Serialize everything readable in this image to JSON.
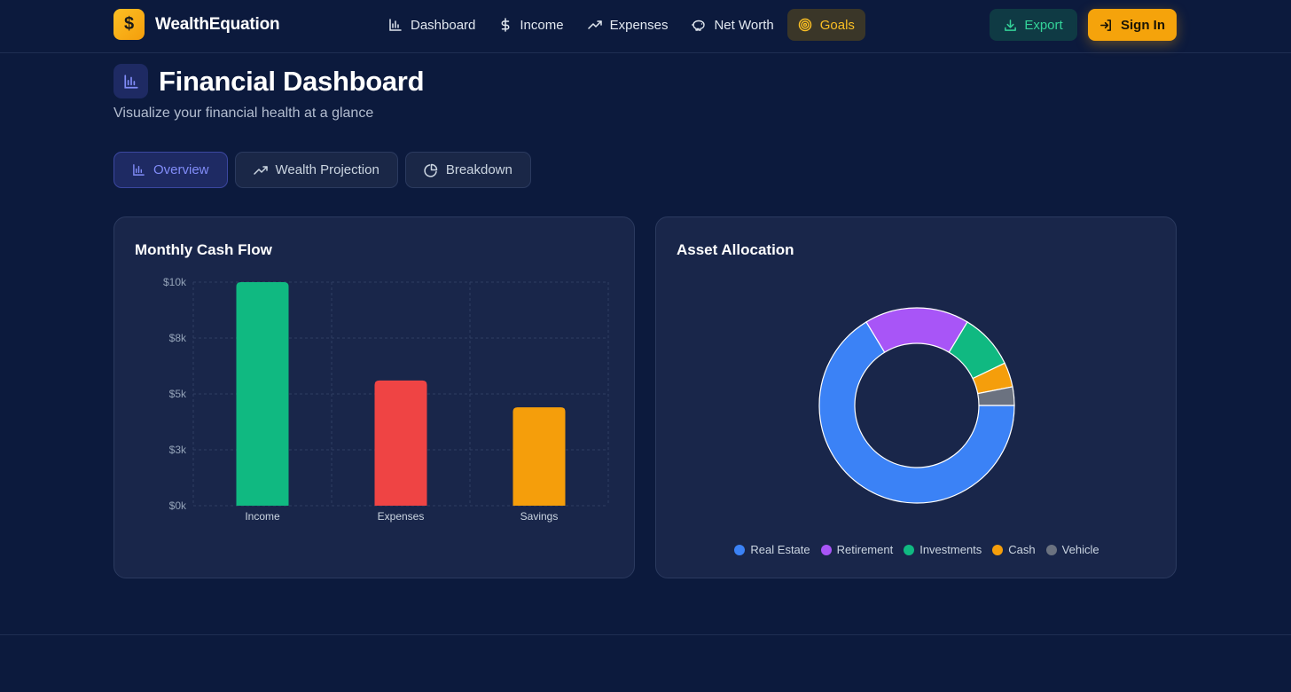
{
  "brand": {
    "icon": "dollar-icon",
    "glyph": "$",
    "name": "WealthEquation"
  },
  "nav": [
    {
      "label": "Dashboard",
      "icon": "bar-chart-icon"
    },
    {
      "label": "Income",
      "icon": "dollar-icon"
    },
    {
      "label": "Expenses",
      "icon": "trending-up-icon"
    },
    {
      "label": "Net Worth",
      "icon": "piggy-bank-icon"
    },
    {
      "label": "Goals",
      "icon": "target-icon",
      "active": true
    }
  ],
  "actions": {
    "export_label": "Export",
    "signin_label": "Sign In"
  },
  "header": {
    "title": "Financial Dashboard",
    "subtitle": "Visualize your financial health at a glance"
  },
  "tabs": [
    {
      "label": "Overview",
      "icon": "bar-chart-icon",
      "active": true
    },
    {
      "label": "Wealth Projection",
      "icon": "trending-up-icon"
    },
    {
      "label": "Breakdown",
      "icon": "pie-chart-icon"
    }
  ],
  "colors": {
    "income": "#10b981",
    "expenses": "#ef4444",
    "savings": "#f59e0b",
    "real_estate": "#3b82f6",
    "retirement": "#a855f7",
    "investments": "#10b981",
    "cash": "#f59e0b",
    "vehicle": "#6b7280",
    "accent": "#fbbf24"
  },
  "chart_data": [
    {
      "type": "bar",
      "title": "Monthly Cash Flow",
      "categories": [
        "Income",
        "Expenses",
        "Savings"
      ],
      "values": [
        10000,
        5600,
        4400
      ],
      "colors": [
        "#10b981",
        "#ef4444",
        "#f59e0b"
      ],
      "yticks": [
        "$0k",
        "$3k",
        "$5k",
        "$8k",
        "$10k"
      ],
      "ylim": [
        0,
        10000
      ],
      "grid": true
    },
    {
      "type": "pie",
      "variant": "donut",
      "title": "Asset Allocation",
      "labels": [
        "Real Estate",
        "Retirement",
        "Investments",
        "Cash",
        "Vehicle"
      ],
      "values": [
        65,
        17,
        9,
        4,
        3
      ],
      "colors": [
        "#3b82f6",
        "#a855f7",
        "#10b981",
        "#f59e0b",
        "#6b7280"
      ],
      "legend": "bottom"
    }
  ]
}
